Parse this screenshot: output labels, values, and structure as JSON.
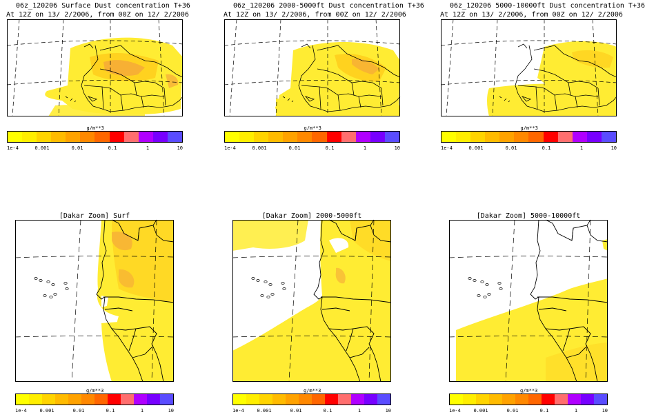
{
  "top_row": [
    {
      "title": "06z_120206 Surface Dust concentration T+36",
      "subtitle": "At 12Z on 13/ 2/2006, from 00Z on 12/ 2/2006"
    },
    {
      "title": "06z_120206 2000-5000ft Dust concentration T+36",
      "subtitle": "At 12Z on 13/ 2/2006, from 00Z on 12/ 2/2006"
    },
    {
      "title": "06z_120206 5000-10000ft Dust concentration T+36",
      "subtitle": "At 12Z on 13/ 2/2006, from 00Z on 12/ 2/2006"
    }
  ],
  "bottom_row": [
    {
      "title": "[Dakar Zoom] Surf"
    },
    {
      "title": "[Dakar Zoom] 2000-5000ft"
    },
    {
      "title": "[Dakar Zoom] 5000-10000ft"
    }
  ],
  "colorbar": {
    "unit": "g/m**3",
    "tick_labels": [
      "1e-4",
      "0.001",
      "0.01",
      "0.1",
      "1",
      "10"
    ],
    "colors": [
      "#ffff00",
      "#ffee00",
      "#ffd400",
      "#ffbb00",
      "#ffa200",
      "#ff8800",
      "#ff6600",
      "#ff0000",
      "#ff6e6e",
      "#b000ff",
      "#7700ff",
      "#5a4cff"
    ]
  },
  "colors": {
    "dust_light": "#ffec33",
    "dust_mid": "#ffd21f",
    "dust_heavy": "#f5a83a",
    "coast": "#000000"
  }
}
